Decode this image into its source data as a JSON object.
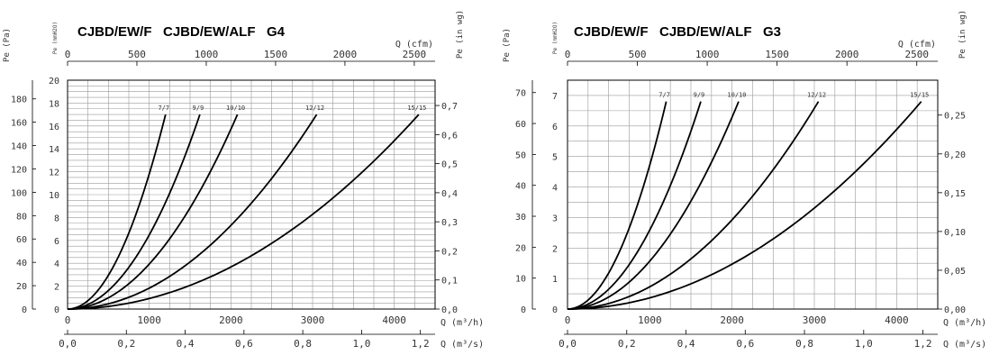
{
  "colors": {
    "curve": "#000000",
    "grid": "#9a9a9a",
    "frame": "#000000",
    "text": "#333333"
  },
  "chart_data": [
    {
      "type": "line",
      "title": "CJBD/EW/F   CJBD/EW/ALF   G4",
      "y_left_outer": {
        "label": "Pe (Pa)",
        "ticks": [
          0,
          20,
          40,
          60,
          80,
          100,
          120,
          140,
          160,
          180
        ],
        "range": [
          0,
          196
        ]
      },
      "y_left_inner": {
        "label": "Pe (mmH2O)",
        "ticks": [
          0,
          2,
          4,
          6,
          8,
          10,
          12,
          14,
          16,
          18,
          20
        ],
        "range": [
          0,
          20
        ]
      },
      "y_right": {
        "label": "Pe (in wg)",
        "ticks": [
          "0,0",
          "0,1",
          "0,2",
          "0,3",
          "0,4",
          "0,5",
          "0,6",
          "0,7"
        ],
        "range": [
          0,
          0.787
        ]
      },
      "x_top": {
        "label": "Q (cfm)",
        "ticks": [
          0,
          500,
          1000,
          1500,
          2000,
          2500
        ],
        "range": [
          0,
          2650
        ]
      },
      "x_bottom": {
        "label": "Q (m³/h)",
        "ticks": [
          0,
          1000,
          2000,
          3000,
          4000
        ],
        "range": [
          0,
          4500
        ]
      },
      "x_bottom2": {
        "label": "Q (m³/s)",
        "ticks": [
          "0,0",
          "0,2",
          "0,4",
          "0,6",
          "0,8",
          "1,0",
          "1,2"
        ],
        "range": [
          0,
          1.25
        ]
      },
      "grid": true,
      "series": [
        {
          "name": "7/7",
          "qmax": 1200,
          "pmax": 17
        },
        {
          "name": "9/9",
          "qmax": 1620,
          "pmax": 17
        },
        {
          "name": "10/10",
          "qmax": 2080,
          "pmax": 17
        },
        {
          "name": "12/12",
          "qmax": 3050,
          "pmax": 17
        },
        {
          "name": "15/15",
          "qmax": 4300,
          "pmax": 17
        }
      ]
    },
    {
      "type": "line",
      "title": "CJBD/EW/F   CJBD/EW/ALF   G3",
      "y_left_outer": {
        "label": "Pe (Pa)",
        "ticks": [
          0,
          10,
          20,
          30,
          40,
          50,
          60,
          70
        ],
        "range": [
          0,
          74
        ]
      },
      "y_left_inner": {
        "label": "Pe (mmH2O)",
        "ticks": [
          0,
          1,
          2,
          3,
          4,
          5,
          6,
          7
        ],
        "range": [
          0,
          7.5
        ]
      },
      "y_right": {
        "label": "Pe (in wg)",
        "ticks": [
          "0,00",
          "0,05",
          "0,10",
          "0,15",
          "0,20",
          "0,25"
        ],
        "range": [
          0,
          0.295
        ]
      },
      "x_top": {
        "label": "Q (cfm)",
        "ticks": [
          0,
          500,
          1000,
          1500,
          2000,
          2500
        ],
        "range": [
          0,
          2650
        ]
      },
      "x_bottom": {
        "label": "Q (m³/h)",
        "ticks": [
          0,
          1000,
          2000,
          3000,
          4000
        ],
        "range": [
          0,
          4500
        ]
      },
      "x_bottom2": {
        "label": "Q (m³/s)",
        "ticks": [
          "0,0",
          "0,2",
          "0,4",
          "0,6",
          "0,8",
          "1,0",
          "1,2"
        ],
        "range": [
          0,
          1.25
        ]
      },
      "grid": true,
      "series": [
        {
          "name": "7/7",
          "qmax": 1200,
          "pmax": 6.8
        },
        {
          "name": "9/9",
          "qmax": 1620,
          "pmax": 6.8
        },
        {
          "name": "10/10",
          "qmax": 2080,
          "pmax": 6.8
        },
        {
          "name": "12/12",
          "qmax": 3050,
          "pmax": 6.8
        },
        {
          "name": "15/15",
          "qmax": 4300,
          "pmax": 6.8
        }
      ]
    }
  ]
}
